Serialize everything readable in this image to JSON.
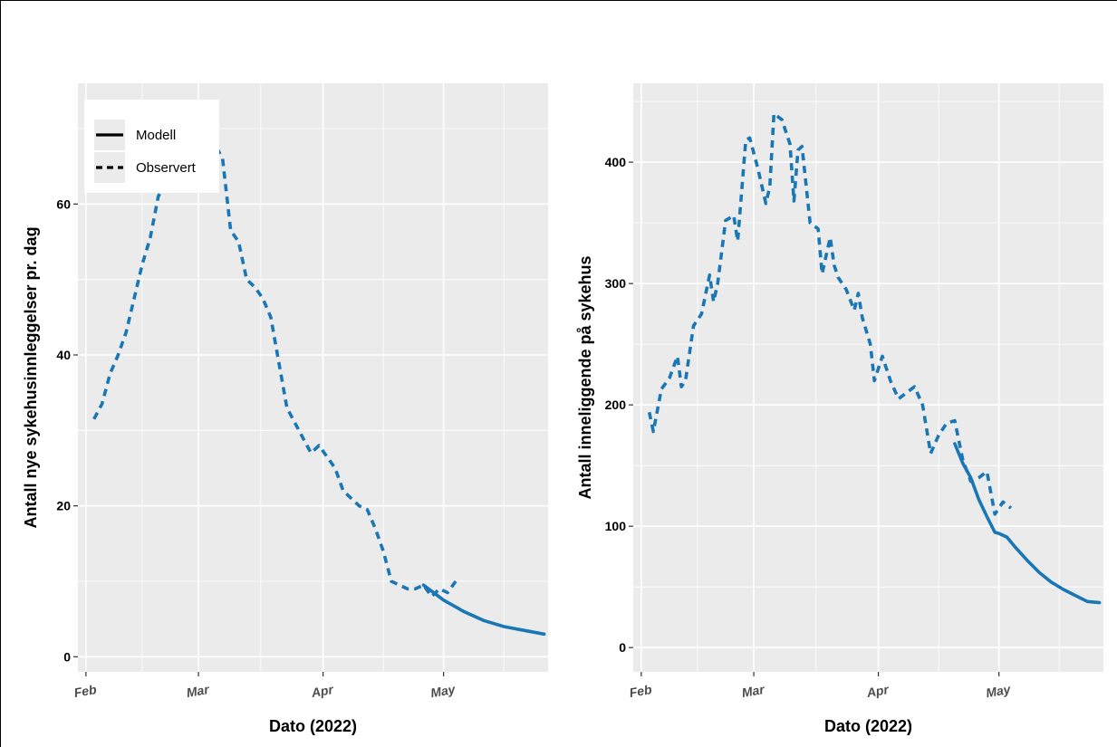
{
  "colors": {
    "panel": "#ebebeb",
    "grid": "#ffffff",
    "series": "#1a77b5"
  },
  "chart_data": [
    {
      "type": "line",
      "xlabel": "Dato (2022)",
      "ylabel": "Antall nye sykehusinnleggelser pr. dag",
      "xlim": [
        "2022-01-30",
        "2022-05-27"
      ],
      "ylim": [
        -2,
        76
      ],
      "x_ticks": [
        {
          "date": "2022-02-01",
          "label": "Feb"
        },
        {
          "date": "2022-03-01",
          "label": "Mar"
        },
        {
          "date": "2022-04-01",
          "label": "Apr"
        },
        {
          "date": "2022-05-01",
          "label": "May"
        }
      ],
      "y_ticks": [
        0,
        20,
        40,
        60
      ],
      "legend": {
        "position": "top-left",
        "entries": [
          {
            "name": "Modell",
            "linetype": "solid"
          },
          {
            "name": "Observert",
            "linetype": "dashed"
          }
        ]
      },
      "series": [
        {
          "name": "Observert",
          "linetype": "dashed",
          "x": [
            "2022-02-03",
            "2022-02-05",
            "2022-02-07",
            "2022-02-09",
            "2022-02-11",
            "2022-02-13",
            "2022-02-15",
            "2022-02-17",
            "2022-02-19",
            "2022-02-21",
            "2022-02-23",
            "2022-02-25",
            "2022-02-27",
            "2022-03-01",
            "2022-03-03",
            "2022-03-05",
            "2022-03-07",
            "2022-03-09",
            "2022-03-11",
            "2022-03-13",
            "2022-03-15",
            "2022-03-17",
            "2022-03-19",
            "2022-03-21",
            "2022-03-23",
            "2022-03-25",
            "2022-03-27",
            "2022-03-29",
            "2022-03-31",
            "2022-04-02",
            "2022-04-04",
            "2022-04-06",
            "2022-04-08",
            "2022-04-10",
            "2022-04-12",
            "2022-04-14",
            "2022-04-16",
            "2022-04-18",
            "2022-04-20",
            "2022-04-22",
            "2022-04-24",
            "2022-04-26",
            "2022-04-28",
            "2022-04-30",
            "2022-05-02",
            "2022-05-04"
          ],
          "y": [
            31.5,
            33.5,
            37.5,
            40,
            43,
            47.5,
            52,
            55.5,
            61,
            63,
            66,
            68,
            67,
            67,
            66,
            68,
            66,
            56.5,
            55,
            50,
            49,
            47.5,
            45,
            39,
            33,
            31,
            29,
            27,
            28,
            26.5,
            25,
            22,
            21,
            20,
            19.5,
            17,
            14,
            10,
            9.5,
            9,
            9,
            9.5,
            8,
            9,
            8.5,
            10
          ]
        },
        {
          "name": "Modell",
          "linetype": "solid",
          "x": [
            "2022-04-26",
            "2022-05-01",
            "2022-05-06",
            "2022-05-11",
            "2022-05-16",
            "2022-05-21",
            "2022-05-26"
          ],
          "y": [
            9.5,
            7.5,
            6,
            4.8,
            4,
            3.5,
            3
          ]
        }
      ]
    },
    {
      "type": "line",
      "xlabel": "Dato (2022)",
      "ylabel": "Antall inneliggende på sykehus",
      "xlim": [
        "2022-01-30",
        "2022-05-27"
      ],
      "ylim": [
        -20,
        465
      ],
      "x_ticks": [
        {
          "date": "2022-02-01",
          "label": "Feb"
        },
        {
          "date": "2022-03-01",
          "label": "Mar"
        },
        {
          "date": "2022-04-01",
          "label": "Apr"
        },
        {
          "date": "2022-05-01",
          "label": "May"
        }
      ],
      "y_ticks": [
        0,
        100,
        200,
        300,
        400
      ],
      "series": [
        {
          "name": "Observert",
          "linetype": "dashed",
          "x": [
            "2022-02-03",
            "2022-02-04",
            "2022-02-06",
            "2022-02-08",
            "2022-02-10",
            "2022-02-11",
            "2022-02-12",
            "2022-02-14",
            "2022-02-16",
            "2022-02-18",
            "2022-02-19",
            "2022-02-20",
            "2022-02-22",
            "2022-02-24",
            "2022-02-25",
            "2022-02-27",
            "2022-02-28",
            "2022-03-02",
            "2022-03-04",
            "2022-03-05",
            "2022-03-06",
            "2022-03-08",
            "2022-03-10",
            "2022-03-11",
            "2022-03-12",
            "2022-03-13",
            "2022-03-15",
            "2022-03-17",
            "2022-03-18",
            "2022-03-20",
            "2022-03-21",
            "2022-03-22",
            "2022-03-24",
            "2022-03-26",
            "2022-03-27",
            "2022-03-28",
            "2022-03-30",
            "2022-03-31",
            "2022-04-02",
            "2022-04-04",
            "2022-04-06",
            "2022-04-08",
            "2022-04-10",
            "2022-04-12",
            "2022-04-14",
            "2022-04-16",
            "2022-04-18",
            "2022-04-20",
            "2022-04-22",
            "2022-04-24",
            "2022-04-26",
            "2022-04-28",
            "2022-04-30",
            "2022-05-02",
            "2022-05-04"
          ],
          "y": [
            194,
            178,
            213,
            222,
            240,
            215,
            220,
            265,
            275,
            307,
            285,
            300,
            352,
            356,
            335,
            418,
            420,
            395,
            366,
            380,
            440,
            435,
            415,
            368,
            410,
            413,
            350,
            345,
            308,
            338,
            315,
            305,
            295,
            278,
            292,
            272,
            250,
            220,
            240,
            220,
            205,
            210,
            215,
            200,
            160,
            175,
            185,
            187,
            155,
            137,
            140,
            145,
            110,
            120,
            115
          ]
        },
        {
          "name": "Modell",
          "linetype": "solid",
          "x": [
            "2022-04-20",
            "2022-04-22",
            "2022-04-24",
            "2022-04-26",
            "2022-04-28",
            "2022-04-30",
            "2022-05-01",
            "2022-05-03",
            "2022-05-05",
            "2022-05-08",
            "2022-05-11",
            "2022-05-14",
            "2022-05-17",
            "2022-05-20",
            "2022-05-23",
            "2022-05-26"
          ],
          "y": [
            168,
            152,
            140,
            122,
            108,
            95,
            94,
            91,
            83,
            72,
            62,
            54,
            48,
            43,
            38,
            37
          ]
        }
      ]
    }
  ]
}
